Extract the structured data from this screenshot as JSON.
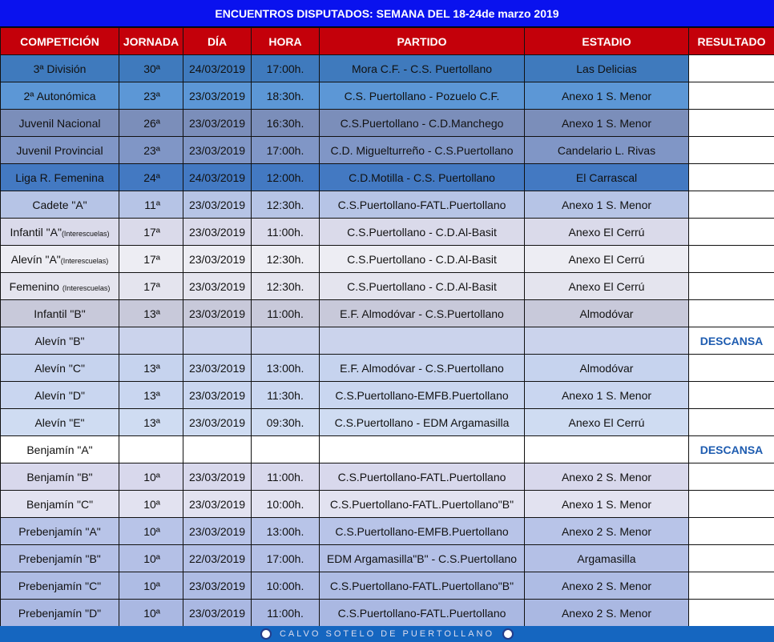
{
  "title": "ENCUENTROS DISPUTADOS: SEMANA DEL 18-24de marzo 2019",
  "columns": [
    "COMPETICIÓN",
    "JORNADA",
    "DÍA",
    "HORA",
    "PARTIDO",
    "ESTADIO",
    "RESULTADO"
  ],
  "rows": [
    {
      "comp": "3ª División",
      "sub": "",
      "jornada": "30ª",
      "dia": "24/03/2019",
      "hora": "17:00h.",
      "partido": "Mora C.F. - C.S. Puertollano",
      "estadio": "Las Delicias",
      "resultado": "",
      "bg": "#3f7abd"
    },
    {
      "comp": "2ª Autonómica",
      "sub": "",
      "jornada": "23ª",
      "dia": "23/03/2019",
      "hora": "18:30h.",
      "partido": "C.S. Puertollano - Pozuelo C.F.",
      "estadio": "Anexo 1 S. Menor",
      "resultado": "",
      "bg": "#5c97d6"
    },
    {
      "comp": "Juvenil Nacional",
      "sub": "",
      "jornada": "26ª",
      "dia": "23/03/2019",
      "hora": "16:30h.",
      "partido": "C.S.Puertollano - C.D.Manchego",
      "estadio": "Anexo 1 S. Menor",
      "resultado": "",
      "bg": "#7b8eba"
    },
    {
      "comp": "Juvenil Provincial",
      "sub": "",
      "jornada": "23ª",
      "dia": "23/03/2019",
      "hora": "17:00h.",
      "partido": "C.D. Miguelturreño - C.S.Puertollano",
      "estadio": "Candelario L. Rivas",
      "resultado": "",
      "bg": "#8096c6"
    },
    {
      "comp": "Liga R. Femenina",
      "sub": "",
      "jornada": "24ª",
      "dia": "24/03/2019",
      "hora": "12:00h.",
      "partido": "C.D.Motilla - C.S. Puertollano",
      "estadio": "El Carrascal",
      "resultado": "",
      "bg": "#4379c2"
    },
    {
      "comp": "Cadete \"A\"",
      "sub": "",
      "jornada": "11ª",
      "dia": "23/03/2019",
      "hora": "12:30h.",
      "partido": "C.S.Puertollano-FATL.Puertollano",
      "estadio": "Anexo 1 S. Menor",
      "resultado": "",
      "bg": "#b6c4e6"
    },
    {
      "comp": "Infantil \"A\"",
      "sub": "(Interescuelas)",
      "jornada": "17ª",
      "dia": "23/03/2019",
      "hora": "11:00h.",
      "partido": "C.S.Puertollano - C.D.Al-Basit",
      "estadio": "Anexo El Cerrú",
      "resultado": "",
      "bg": "#dadaea"
    },
    {
      "comp": "Alevín \"A\"",
      "sub": "(Interescuelas)",
      "jornada": "17ª",
      "dia": "23/03/2019",
      "hora": "12:30h.",
      "partido": "C.S.Puertollano - C.D.Al-Basit",
      "estadio": "Anexo El Cerrú",
      "resultado": "",
      "bg": "#ededf3"
    },
    {
      "comp": "Femenino ",
      "sub": "(Interescuelas)",
      "jornada": "17ª",
      "dia": "23/03/2019",
      "hora": "12:30h.",
      "partido": "C.S.Puertollano - C.D.Al-Basit",
      "estadio": "Anexo El Cerrú",
      "resultado": "",
      "bg": "#e4e4ee"
    },
    {
      "comp": "Infantil \"B\"",
      "sub": "",
      "jornada": "13ª",
      "dia": "23/03/2019",
      "hora": "11:00h.",
      "partido": "E.F. Almodóvar - C.S.Puertollano",
      "estadio": "Almodóvar",
      "resultado": "",
      "bg": "#c8c9da"
    },
    {
      "comp": "Alevín \"B\"",
      "sub": "",
      "jornada": "",
      "dia": "",
      "hora": "",
      "partido": "",
      "estadio": "",
      "resultado": "DESCANSA",
      "bg": "#cbd3ec"
    },
    {
      "comp": "Alevín \"C\"",
      "sub": "",
      "jornada": "13ª",
      "dia": "23/03/2019",
      "hora": "13:00h.",
      "partido": "E.F. Almodóvar - C.S.Puertollano",
      "estadio": "Almodóvar",
      "resultado": "",
      "bg": "#c6d3ee"
    },
    {
      "comp": "Alevín \"D\"",
      "sub": "",
      "jornada": "13ª",
      "dia": "23/03/2019",
      "hora": "11:30h.",
      "partido": "C.S.Puertollano-EMFB.Puertollano",
      "estadio": "Anexo 1 S. Menor",
      "resultado": "",
      "bg": "#c9d6f0"
    },
    {
      "comp": "Alevín \"E\"",
      "sub": "",
      "jornada": "13ª",
      "dia": "23/03/2019",
      "hora": "09:30h.",
      "partido": "C.S.Puertollano - EDM Argamasilla",
      "estadio": "Anexo El Cerrú",
      "resultado": "",
      "bg": "#cfdcf2"
    },
    {
      "comp": "Benjamín \"A\"",
      "sub": "",
      "jornada": "",
      "dia": "",
      "hora": "",
      "partido": "",
      "estadio": "",
      "resultado": "DESCANSA",
      "bg": "#ffffff"
    },
    {
      "comp": "Benjamín \"B\"",
      "sub": "",
      "jornada": "10ª",
      "dia": "23/03/2019",
      "hora": "11:00h.",
      "partido": "C.S.Puertollano-FATL.Puertollano",
      "estadio": "Anexo 2 S. Menor",
      "resultado": "",
      "bg": "#d8d8ec"
    },
    {
      "comp": "Benjamín \"C\"",
      "sub": "",
      "jornada": "10ª",
      "dia": "23/03/2019",
      "hora": "10:00h.",
      "partido": "C.S.Puertollano-FATL.Puertollano\"B\"",
      "estadio": "Anexo 1 S. Menor",
      "resultado": "",
      "bg": "#e2e2f0"
    },
    {
      "comp": "Prebenjamín \"A\"",
      "sub": "",
      "jornada": "10ª",
      "dia": "23/03/2019",
      "hora": "13:00h.",
      "partido": "C.S.Puertollano-EMFB.Puertollano",
      "estadio": "Anexo 2 S. Menor",
      "resultado": "",
      "bg": "#b8c4e8"
    },
    {
      "comp": "Prebenjamín \"B\"",
      "sub": "",
      "jornada": "10ª",
      "dia": "22/03/2019",
      "hora": "17:00h.",
      "partido": "EDM Argamasilla\"B\" -  C.S.Puertollano",
      "estadio": "Argamasilla",
      "resultado": "",
      "bg": "#b4c0e6"
    },
    {
      "comp": "Prebenjamín \"C\"",
      "sub": "",
      "jornada": "10ª",
      "dia": "23/03/2019",
      "hora": "10:00h.",
      "partido": "C.S.Puertollano-FATL.Puertollano\"B\"",
      "estadio": "Anexo 2 S. Menor",
      "resultado": "",
      "bg": "#aebce4"
    },
    {
      "comp": "Prebenjamín \"D\"",
      "sub": "",
      "jornada": "10ª",
      "dia": "23/03/2019",
      "hora": "11:00h.",
      "partido": "C.S.Puertollano-FATL.Puertollano",
      "estadio": "Anexo 2 S. Menor",
      "resultado": "",
      "bg": "#aab8e2"
    }
  ],
  "footer": "CALVO SOTELO DE PUERTOLLANO",
  "colors": {
    "title_bg": "#0a12ee",
    "header_bg": "#c4000a",
    "footer_bg": "#1566c0",
    "descansa": "#1e5cb0"
  }
}
